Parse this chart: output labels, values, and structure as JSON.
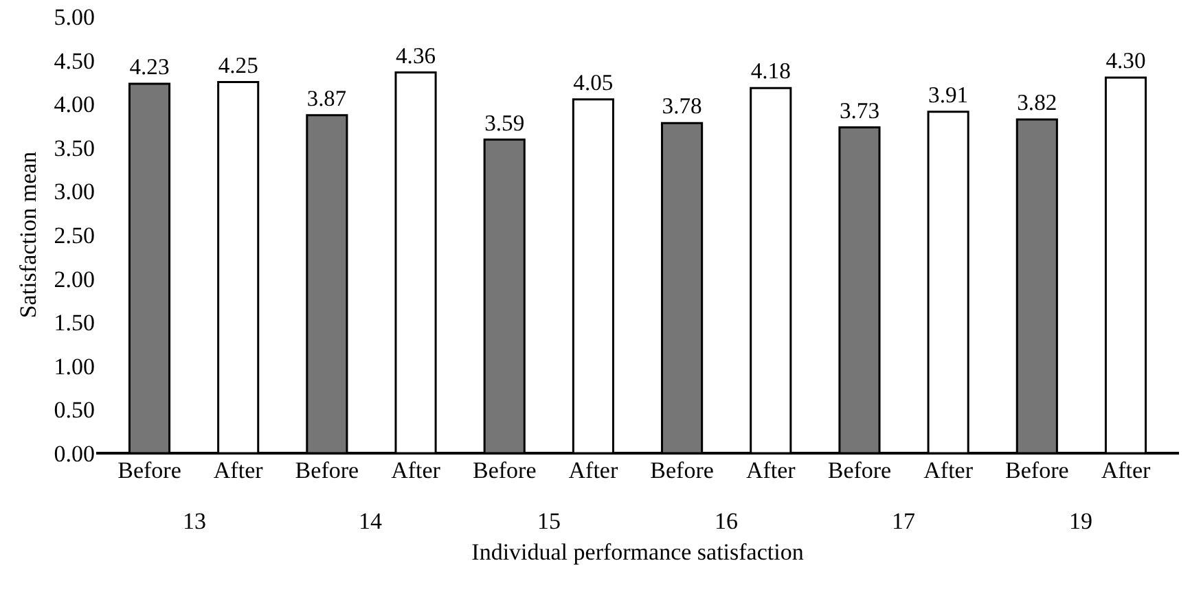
{
  "chart_data": {
    "type": "bar",
    "xlabel": "Individual performance satisfaction",
    "ylabel": "Satisfaction mean",
    "categories": [
      "13",
      "14",
      "15",
      "16",
      "17",
      "19"
    ],
    "series": [
      {
        "name": "Before",
        "color": "#767676",
        "values": [
          4.23,
          3.87,
          3.59,
          3.78,
          3.73,
          3.82
        ],
        "value_labels": [
          "4.23",
          "3.87",
          "3.59",
          "3.78",
          "3.73",
          "3.82"
        ]
      },
      {
        "name": "After",
        "color": "#ffffff",
        "values": [
          4.25,
          4.36,
          4.05,
          4.18,
          3.91,
          4.3
        ],
        "value_labels": [
          "4.25",
          "4.36",
          "4.05",
          "4.18",
          "3.91",
          "4.30"
        ]
      }
    ],
    "ylim": [
      0,
      5
    ],
    "yticks": [
      {
        "value": 0,
        "label": "0.00"
      },
      {
        "value": 0.5,
        "label": "0.50"
      },
      {
        "value": 1,
        "label": "1.00"
      },
      {
        "value": 1.5,
        "label": "1.50"
      },
      {
        "value": 2,
        "label": "2.00"
      },
      {
        "value": 2.5,
        "label": "2.50"
      },
      {
        "value": 3,
        "label": "3.00"
      },
      {
        "value": 3.5,
        "label": "3.50"
      },
      {
        "value": 4,
        "label": "4.00"
      },
      {
        "value": 4.5,
        "label": "4.50"
      },
      {
        "value": 5,
        "label": "5.00"
      }
    ],
    "grid": false,
    "legend": false
  }
}
